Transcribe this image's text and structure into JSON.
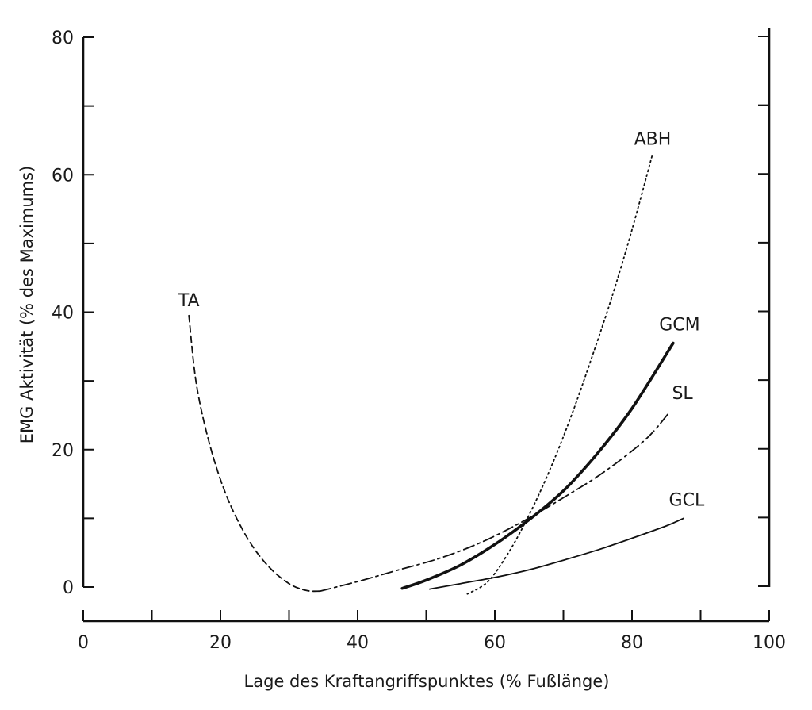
{
  "chart_data": {
    "type": "line",
    "title": "",
    "xlabel": "Lage des Kraftangriffspunktes (% Fußlänge)",
    "ylabel": "EMG Aktivität (% des Maximums)",
    "xlim": [
      0,
      100
    ],
    "ylim": [
      0,
      80
    ],
    "x_ticks": [
      0,
      20,
      40,
      60,
      80,
      100
    ],
    "x_tick_labels": [
      "0",
      "20",
      "40",
      "60",
      "80",
      "100"
    ],
    "y_ticks": [
      0,
      20,
      40,
      60,
      80
    ],
    "y_tick_labels": [
      "0",
      "20",
      "40",
      "60",
      "80"
    ],
    "grid": false,
    "series": [
      {
        "name": "TA",
        "style": "dashed",
        "x": [
          15.4,
          16.5,
          18.5,
          21,
          24,
          27,
          30,
          32.5,
          34.5
        ],
        "y": [
          39.5,
          29.5,
          20.5,
          13,
          7,
          3,
          0.5,
          -0.5,
          -0.6
        ]
      },
      {
        "name": "SL",
        "style": "dashdot",
        "x": [
          34.5,
          40,
          46,
          52,
          58,
          64,
          70,
          76,
          82,
          85.5
        ],
        "y": [
          -0.6,
          0.8,
          2.5,
          4.2,
          6.5,
          9.5,
          13,
          16.8,
          21.5,
          25.5
        ]
      },
      {
        "name": "GCM",
        "style": "solid-bold",
        "x": [
          46.5,
          50,
          55,
          60,
          65,
          70,
          75,
          80,
          86
        ],
        "y": [
          -0.2,
          1,
          3.2,
          6.2,
          9.8,
          14,
          19.5,
          26,
          35.5
        ]
      },
      {
        "name": "GCL",
        "style": "solid-thin",
        "x": [
          50.5,
          55,
          60,
          65,
          70,
          75,
          80,
          85,
          87.5
        ],
        "y": [
          -0.3,
          0.5,
          1.4,
          2.5,
          3.9,
          5.4,
          7.1,
          8.9,
          10
        ]
      },
      {
        "name": "ABH",
        "style": "dotted",
        "x": [
          56,
          59,
          62,
          65,
          68,
          71,
          74,
          77,
          80,
          83
        ],
        "y": [
          -1,
          0.8,
          5,
          10.5,
          17,
          24.5,
          33,
          42,
          52,
          63
        ]
      }
    ]
  }
}
